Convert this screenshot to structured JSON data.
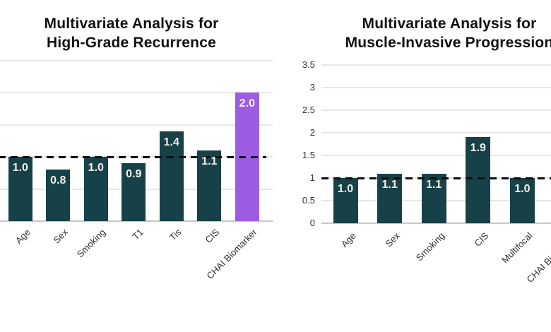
{
  "colors": {
    "bar": "#164149",
    "highlight": "#9e5ce4",
    "value_text": "#f5f2ea",
    "reference_line": "#0e0e0e",
    "gridline": "#e7e7e7",
    "axis_line": "#c7c7c7",
    "title_text": "#101010",
    "tick_text": "#333333",
    "category_text": "#303030",
    "background": "#ffffff"
  },
  "chart_data": [
    {
      "type": "bar",
      "title": "Multivariate Analysis for High-Grade Recurrence",
      "title_lines": [
        "Multivariate Analysis for",
        "High-Grade Recurrence"
      ],
      "categories": [
        "Age",
        "Sex",
        "Smoking",
        "T1",
        "Tis",
        "CIS",
        "CHAI Biomarker"
      ],
      "values": [
        1.0,
        0.8,
        1.0,
        0.9,
        1.4,
        1.1,
        2.0
      ],
      "value_labels": [
        "1.0",
        "0.8",
        "1.0",
        "0.9",
        "1.4",
        "1.1",
        "2.0"
      ],
      "highlight_index": 6,
      "reference_line": 1.0,
      "ylim": [
        0,
        2.5
      ],
      "y_ticks": [
        0,
        0.5,
        1,
        1.5,
        2,
        2.5
      ],
      "y_tick_labels": [],
      "grid": true,
      "legend": "none",
      "note": "y-axis labels cropped off left edge of viewport"
    },
    {
      "type": "bar",
      "title": "Multivariate Analysis for Muscle-Invasive Progression",
      "title_lines": [
        "Multivariate Analysis for",
        "Muscle-Invasive Progression"
      ],
      "categories": [
        "Age",
        "Sex",
        "Smoking",
        "CIS",
        "Multifocal",
        "CHAI Biomarker"
      ],
      "values": [
        1.0,
        1.1,
        1.1,
        1.9,
        1.0,
        null
      ],
      "value_labels": [
        "1.0",
        "1.1",
        "1.1",
        "1.9",
        "1.0",
        null
      ],
      "highlight_index": -1,
      "reference_line": 1.0,
      "ylim": [
        0,
        3.5
      ],
      "y_ticks": [
        0,
        0.5,
        1,
        1.5,
        2,
        2.5,
        3,
        3.5
      ],
      "y_tick_labels": [
        "0",
        "0.5",
        "1",
        "1.5",
        "2",
        "2.5",
        "3",
        "3.5"
      ],
      "grid": true,
      "legend": "none",
      "note": "rightmost bar cropped off right edge of viewport"
    }
  ]
}
